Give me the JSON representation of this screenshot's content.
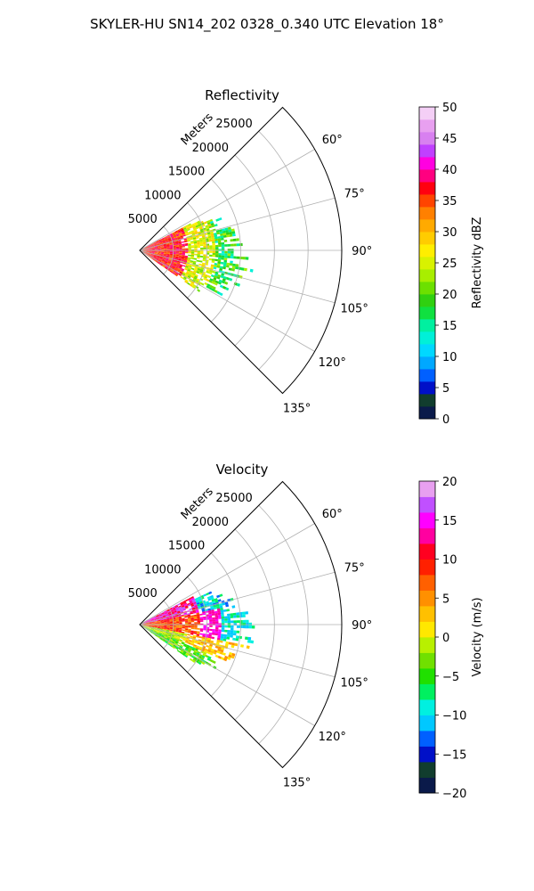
{
  "figure": {
    "suptitle": "SKYLER-HU  SN14_202  0328_0.340 UTC Elevation 18°"
  },
  "chart_data": [
    {
      "type": "heatmap",
      "projection": "polar-sector",
      "title": "Reflectivity",
      "range_axis_label": "Meters",
      "range_ticks": [
        5000,
        10000,
        15000,
        20000,
        25000
      ],
      "range_tick_labels": [
        "5000",
        "10000",
        "15000",
        "20000",
        "25000"
      ],
      "rmax": 30000,
      "azimuth_range_deg": [
        45,
        135
      ],
      "azimuth_ticks": [
        60,
        75,
        90,
        105,
        120,
        135
      ],
      "azimuth_tick_labels": [
        "60°",
        "75°",
        "90°",
        "105°",
        "120°",
        "135°"
      ],
      "grid": true,
      "colorbar": {
        "label": "Reflectivity dBZ",
        "min": 0,
        "max": 50,
        "ticks": [
          0,
          5,
          10,
          15,
          20,
          25,
          30,
          35,
          40,
          45,
          50
        ],
        "tick_labels": [
          "0",
          "5",
          "10",
          "15",
          "20",
          "25",
          "30",
          "35",
          "40",
          "45",
          "50"
        ]
      },
      "echo_azimuth_extent_deg": [
        62,
        125
      ],
      "echo_max_range_m": 16500,
      "field_samples": [
        {
          "azimuth": 70,
          "range": 3000,
          "value": 37
        },
        {
          "azimuth": 85,
          "range": 4000,
          "value": 33
        },
        {
          "azimuth": 100,
          "range": 5000,
          "value": 36
        },
        {
          "azimuth": 110,
          "range": 6000,
          "value": 38
        },
        {
          "azimuth": 75,
          "range": 9000,
          "value": 23
        },
        {
          "azimuth": 90,
          "range": 10000,
          "value": 20
        },
        {
          "azimuth": 105,
          "range": 10000,
          "value": 17
        },
        {
          "azimuth": 68,
          "range": 14000,
          "value": 21
        },
        {
          "azimuth": 80,
          "range": 15000,
          "value": 19
        },
        {
          "azimuth": 95,
          "range": 12000,
          "value": 13
        }
      ]
    },
    {
      "type": "heatmap",
      "projection": "polar-sector",
      "title": "Velocity",
      "range_axis_label": "Meters",
      "range_ticks": [
        5000,
        10000,
        15000,
        20000,
        25000
      ],
      "range_tick_labels": [
        "5000",
        "10000",
        "15000",
        "20000",
        "25000"
      ],
      "rmax": 30000,
      "azimuth_range_deg": [
        45,
        135
      ],
      "azimuth_ticks": [
        60,
        75,
        90,
        105,
        120,
        135
      ],
      "azimuth_tick_labels": [
        "60°",
        "75°",
        "90°",
        "105°",
        "120°",
        "135°"
      ],
      "grid": true,
      "colorbar": {
        "label": "Velocity (m/s)",
        "min": -20,
        "max": 20,
        "ticks": [
          -20,
          -15,
          -10,
          -5,
          0,
          5,
          10,
          15,
          20
        ],
        "tick_labels": [
          "−20",
          "−15",
          "−10",
          "−5",
          "0",
          "5",
          "10",
          "15",
          "20"
        ]
      },
      "echo_azimuth_extent_deg": [
        62,
        125
      ],
      "echo_max_range_m": 16500,
      "field_samples": [
        {
          "azimuth": 70,
          "range": 5000,
          "value": 15
        },
        {
          "azimuth": 85,
          "range": 4000,
          "value": 9
        },
        {
          "azimuth": 95,
          "range": 6000,
          "value": 8
        },
        {
          "azimuth": 105,
          "range": 7000,
          "value": -5
        },
        {
          "azimuth": 115,
          "range": 8000,
          "value": -6
        },
        {
          "azimuth": 100,
          "range": 10000,
          "value": 2
        },
        {
          "azimuth": 68,
          "range": 13000,
          "value": -8
        },
        {
          "azimuth": 75,
          "range": 14000,
          "value": -12
        },
        {
          "azimuth": 82,
          "range": 15000,
          "value": -10
        }
      ]
    }
  ]
}
